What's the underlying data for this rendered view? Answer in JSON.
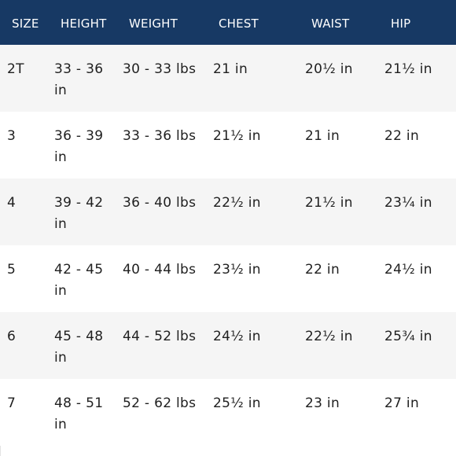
{
  "table": {
    "headers": {
      "size": "SIZE",
      "height": "HEIGHT",
      "weight": "WEIGHT",
      "chest": "CHEST",
      "waist": "WAIST",
      "hip": "HIP"
    },
    "rows": [
      {
        "size": "2T",
        "height": "33 - 36 in",
        "weight": "30 - 33 lbs",
        "chest": "21 in",
        "waist": "20½ in",
        "hip": "21½ in"
      },
      {
        "size": "3",
        "height": "36 - 39 in",
        "weight": "33 - 36 lbs",
        "chest": "21½ in",
        "waist": "21 in",
        "hip": "22 in"
      },
      {
        "size": "4",
        "height": "39 - 42 in",
        "weight": "36 - 40 lbs",
        "chest": "22½ in",
        "waist": "21½ in",
        "hip": "23¼ in"
      },
      {
        "size": "5",
        "height": "42 - 45 in",
        "weight": "40 - 44 lbs",
        "chest": "23½ in",
        "waist": "22 in",
        "hip": "24½ in"
      },
      {
        "size": "6",
        "height": "45 - 48 in",
        "weight": "44 - 52 lbs",
        "chest": "24½ in",
        "waist": "22½ in",
        "hip": "25¾ in"
      },
      {
        "size": "7",
        "height": "48 - 51 in",
        "weight": "52 - 62 lbs",
        "chest": "25½ in",
        "waist": "23 in",
        "hip": "27 in"
      }
    ]
  },
  "colors": {
    "header_background": "#173964",
    "header_text": "#ffffff",
    "alt_row_background": "#f5f5f5"
  }
}
